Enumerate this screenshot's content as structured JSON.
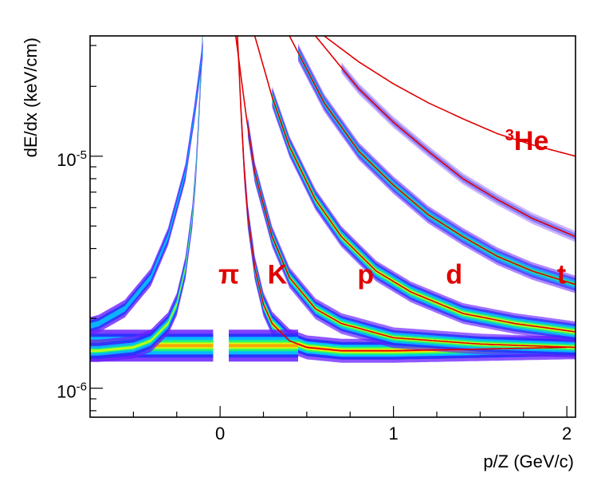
{
  "chart_data": {
    "type": "scatter",
    "subtype": "2d-histogram-with-curves",
    "title": "",
    "xlabel": "p/Z (GeV/c)",
    "ylabel": "dE/dx (keV/cm)",
    "x_axis": {
      "range": [
        -0.75,
        2.05
      ],
      "scale": "linear",
      "tick_labels": [
        {
          "value": 0,
          "text": "0"
        },
        {
          "value": 1,
          "text": "1"
        },
        {
          "value": 2,
          "text": "2"
        }
      ]
    },
    "y_axis": {
      "range": [
        7.5e-07,
        3.3e-05
      ],
      "scale": "log",
      "tick_labels": [
        {
          "value": 1e-05,
          "mantissa": "10",
          "exponent": "-5"
        },
        {
          "value": 1e-06,
          "mantissa": "10",
          "exponent": "-6"
        }
      ]
    },
    "grid": false,
    "band_colors": [
      "#6a1fff",
      "#1f33ff",
      "#00d2ff",
      "#29ff5b",
      "#eaff00",
      "#ff9a00",
      "#ff0000"
    ],
    "curve_color": "#e00000",
    "series": [
      {
        "name": "π",
        "label_text": "π",
        "label_point": {
          "x": 0.05,
          "y": 3.1e-06
        },
        "points": [
          [
            0.1,
            3.3e-05
          ],
          [
            0.12,
            1.6e-05
          ],
          [
            0.14,
            8.5e-06
          ],
          [
            0.16,
            5.5e-06
          ],
          [
            0.2,
            3.3e-06
          ],
          [
            0.25,
            2.3e-06
          ],
          [
            0.3,
            1.9e-06
          ],
          [
            0.4,
            1.6e-06
          ],
          [
            0.5,
            1.5e-06
          ],
          [
            0.7,
            1.45e-06
          ],
          [
            1.0,
            1.45e-06
          ],
          [
            2.0,
            1.5e-06
          ]
        ]
      },
      {
        "name": "K",
        "label_text": "K",
        "label_point": {
          "x": 0.33,
          "y": 3.1e-06
        },
        "points": [
          [
            0.09,
            3.3e-05
          ],
          [
            0.15,
            1.5e-05
          ],
          [
            0.2,
            8.5e-06
          ],
          [
            0.3,
            4.5e-06
          ],
          [
            0.4,
            3e-06
          ],
          [
            0.55,
            2.2e-06
          ],
          [
            0.7,
            1.9e-06
          ],
          [
            1.0,
            1.65e-06
          ],
          [
            1.5,
            1.55e-06
          ],
          [
            2.05,
            1.5e-06
          ]
        ]
      },
      {
        "name": "p",
        "label_text": "p",
        "label_point": {
          "x": 0.84,
          "y": 3.1e-06
        },
        "points": [
          [
            0.2,
            3.3e-05
          ],
          [
            0.3,
            1.8e-05
          ],
          [
            0.4,
            1.1e-05
          ],
          [
            0.55,
            6.5e-06
          ],
          [
            0.7,
            4.5e-06
          ],
          [
            0.9,
            3.2e-06
          ],
          [
            1.1,
            2.6e-06
          ],
          [
            1.4,
            2.1e-06
          ],
          [
            1.7,
            1.9e-06
          ],
          [
            2.05,
            1.75e-06
          ]
        ]
      },
      {
        "name": "d",
        "label_text": "d",
        "label_point": {
          "x": 1.35,
          "y": 3.1e-06
        },
        "points": [
          [
            0.4,
            3.3e-05
          ],
          [
            0.6,
            1.7e-05
          ],
          [
            0.8,
            1.05e-05
          ],
          [
            1.0,
            7.5e-06
          ],
          [
            1.2,
            5.6e-06
          ],
          [
            1.4,
            4.5e-06
          ],
          [
            1.6,
            3.7e-06
          ],
          [
            1.8,
            3.2e-06
          ],
          [
            2.05,
            2.8e-06
          ]
        ]
      },
      {
        "name": "t",
        "label_text": "t",
        "label_point": {
          "x": 1.97,
          "y": 3.1e-06
        },
        "points": [
          [
            0.55,
            3.3e-05
          ],
          [
            0.8,
            1.95e-05
          ],
          [
            1.0,
            1.4e-05
          ],
          [
            1.2,
            1.05e-05
          ],
          [
            1.4,
            8e-06
          ],
          [
            1.6,
            6.5e-06
          ],
          [
            1.8,
            5.4e-06
          ],
          [
            2.05,
            4.5e-06
          ]
        ]
      },
      {
        "name": "³He",
        "label_prefix": "3",
        "label_text": "He",
        "label_point": {
          "x": 1.77,
          "y": 1.17e-05
        },
        "points": [
          [
            0.6,
            3.3e-05
          ],
          [
            0.8,
            2.55e-05
          ],
          [
            1.0,
            2.05e-05
          ],
          [
            1.2,
            1.7e-05
          ],
          [
            1.4,
            1.45e-05
          ],
          [
            1.6,
            1.25e-05
          ],
          [
            1.8,
            1.12e-05
          ],
          [
            2.05,
            1e-05
          ]
        ]
      }
    ]
  }
}
